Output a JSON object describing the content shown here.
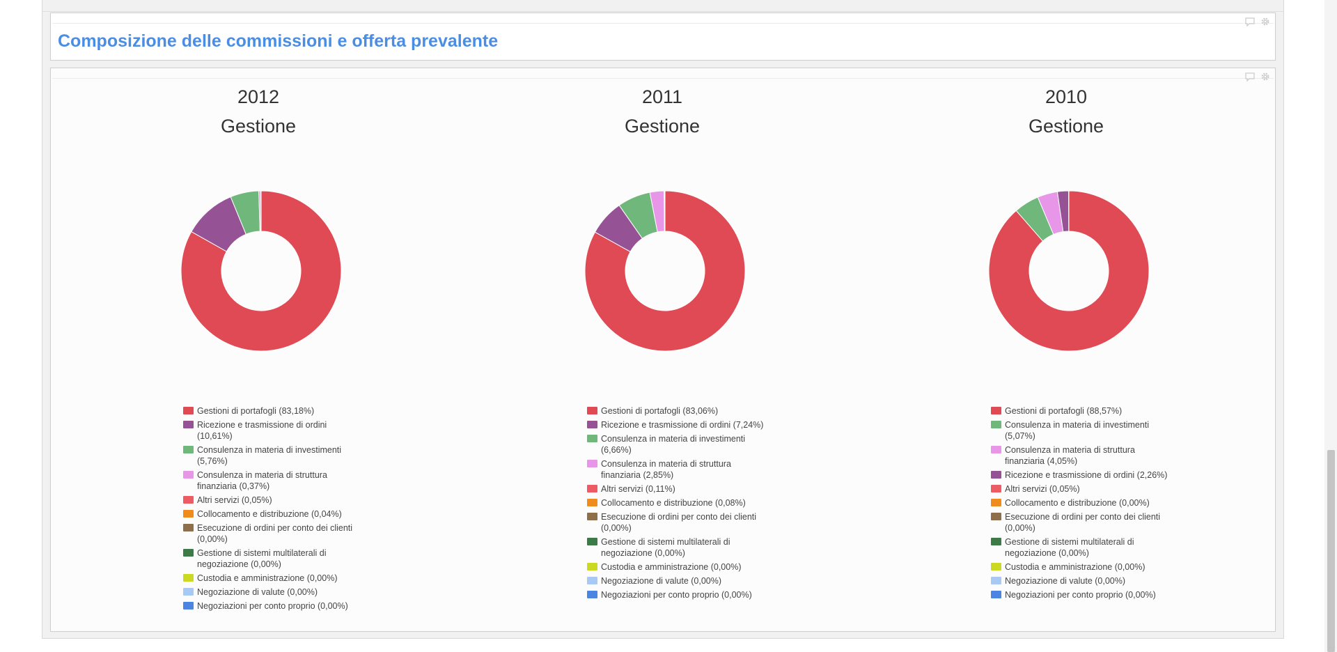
{
  "section": {
    "title": "Composizione delle commissioni e offerta prevalente"
  },
  "chart_data": [
    {
      "type": "pie",
      "title": "2012",
      "subtitle": "Gestione",
      "slices": [
        {
          "label": "Gestioni di portafogli (83,18%)",
          "value": 83.18,
          "color": "#e04a55"
        },
        {
          "label": "Ricezione e trasmissione di ordini (10,61%)",
          "value": 10.61,
          "color": "#955396"
        },
        {
          "label": "Consulenza in materia di investimenti (5,76%)",
          "value": 5.76,
          "color": "#6fb77a"
        },
        {
          "label": "Consulenza in materia di struttura finanziaria (0,37%)",
          "value": 0.37,
          "color": "#e897e8"
        },
        {
          "label": "Altri servizi (0,05%)",
          "value": 0.05,
          "color": "#ed5c65"
        },
        {
          "label": "Collocamento e distribuzione (0,04%)",
          "value": 0.04,
          "color": "#ee8d1d"
        },
        {
          "label": "Esecuzione di ordini per conto dei clienti (0,00%)",
          "value": 0,
          "color": "#8d6f4c"
        },
        {
          "label": "Gestione di sistemi multilaterali di negoziazione (0,00%)",
          "value": 0,
          "color": "#3c7a48"
        },
        {
          "label": "Custodia e amministrazione (0,00%)",
          "value": 0,
          "color": "#cbd922"
        },
        {
          "label": "Negoziazione di valute (0,00%)",
          "value": 0,
          "color": "#a9c9f5"
        },
        {
          "label": "Negoziazioni per conto proprio (0,00%)",
          "value": 0,
          "color": "#4c84e2"
        }
      ]
    },
    {
      "type": "pie",
      "title": "2011",
      "subtitle": "Gestione",
      "slices": [
        {
          "label": "Gestioni di portafogli (83,06%)",
          "value": 83.06,
          "color": "#e04a55"
        },
        {
          "label": "Ricezione e trasmissione di ordini (7,24%)",
          "value": 7.24,
          "color": "#955396"
        },
        {
          "label": "Consulenza in materia di investimenti (6,66%)",
          "value": 6.66,
          "color": "#6fb77a"
        },
        {
          "label": "Consulenza in materia di struttura finanziaria (2,85%)",
          "value": 2.85,
          "color": "#e897e8"
        },
        {
          "label": "Altri servizi (0,11%)",
          "value": 0.11,
          "color": "#ed5c65"
        },
        {
          "label": "Collocamento e distribuzione (0,08%)",
          "value": 0.08,
          "color": "#ee8d1d"
        },
        {
          "label": "Esecuzione di ordini per conto dei clienti (0,00%)",
          "value": 0,
          "color": "#8d6f4c"
        },
        {
          "label": "Gestione di sistemi multilaterali di negoziazione (0,00%)",
          "value": 0,
          "color": "#3c7a48"
        },
        {
          "label": "Custodia e amministrazione (0,00%)",
          "value": 0,
          "color": "#cbd922"
        },
        {
          "label": "Negoziazione di valute (0,00%)",
          "value": 0,
          "color": "#a9c9f5"
        },
        {
          "label": "Negoziazioni per conto proprio (0,00%)",
          "value": 0,
          "color": "#4c84e2"
        }
      ]
    },
    {
      "type": "pie",
      "title": "2010",
      "subtitle": "Gestione",
      "slices": [
        {
          "label": "Gestioni di portafogli (88,57%)",
          "value": 88.57,
          "color": "#e04a55"
        },
        {
          "label": "Consulenza in materia di investimenti (5,07%)",
          "value": 5.07,
          "color": "#6fb77a"
        },
        {
          "label": "Consulenza in materia di struttura finanziaria (4,05%)",
          "value": 4.05,
          "color": "#e897e8"
        },
        {
          "label": "Ricezione e trasmissione di ordini (2,26%)",
          "value": 2.26,
          "color": "#955396"
        },
        {
          "label": "Altri servizi (0,05%)",
          "value": 0.05,
          "color": "#ed5c65"
        },
        {
          "label": "Collocamento e distribuzione (0,00%)",
          "value": 0,
          "color": "#ee8d1d"
        },
        {
          "label": "Esecuzione di ordini per conto dei clienti (0,00%)",
          "value": 0,
          "color": "#8d6f4c"
        },
        {
          "label": "Gestione di sistemi multilaterali di negoziazione (0,00%)",
          "value": 0,
          "color": "#3c7a48"
        },
        {
          "label": "Custodia e amministrazione (0,00%)",
          "value": 0,
          "color": "#cbd922"
        },
        {
          "label": "Negoziazione di valute (0,00%)",
          "value": 0,
          "color": "#a9c9f5"
        },
        {
          "label": "Negoziazioni per conto proprio (0,00%)",
          "value": 0,
          "color": "#4c84e2"
        }
      ]
    }
  ]
}
